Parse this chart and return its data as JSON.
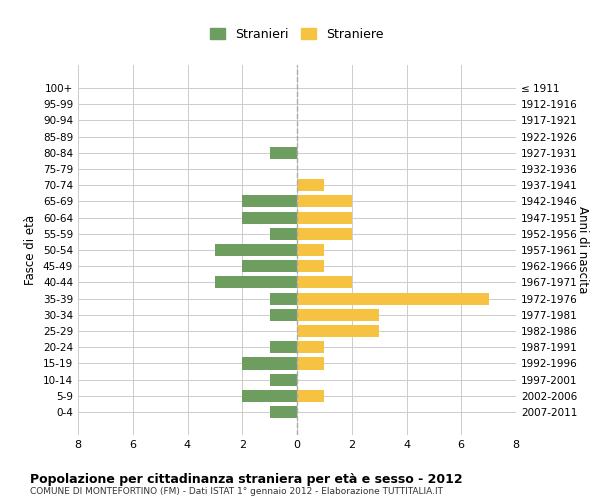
{
  "age_groups": [
    "100+",
    "95-99",
    "90-94",
    "85-89",
    "80-84",
    "75-79",
    "70-74",
    "65-69",
    "60-64",
    "55-59",
    "50-54",
    "45-49",
    "40-44",
    "35-39",
    "30-34",
    "25-29",
    "20-24",
    "15-19",
    "10-14",
    "5-9",
    "0-4"
  ],
  "birth_years": [
    "≤ 1911",
    "1912-1916",
    "1917-1921",
    "1922-1926",
    "1927-1931",
    "1932-1936",
    "1937-1941",
    "1942-1946",
    "1947-1951",
    "1952-1956",
    "1957-1961",
    "1962-1966",
    "1967-1971",
    "1972-1976",
    "1977-1981",
    "1982-1986",
    "1987-1991",
    "1992-1996",
    "1997-2001",
    "2002-2006",
    "2007-2011"
  ],
  "stranieri": [
    0,
    0,
    0,
    0,
    1,
    0,
    0,
    2,
    2,
    1,
    3,
    2,
    3,
    1,
    1,
    0,
    1,
    2,
    1,
    2,
    1
  ],
  "straniere": [
    0,
    0,
    0,
    0,
    0,
    0,
    1,
    2,
    2,
    2,
    1,
    1,
    2,
    7,
    3,
    3,
    1,
    1,
    0,
    1,
    0
  ],
  "stranieri_color": "#6e9e5f",
  "straniere_color": "#f5c242",
  "xlim": 8,
  "ylabel": "Fasce di età",
  "ylabel_right": "Anni di nascita",
  "title": "Popolazione per cittadinanza straniera per età e sesso - 2012",
  "subtitle": "COMUNE DI MONTEFORTINO (FM) - Dati ISTAT 1° gennaio 2012 - Elaborazione TUTTITALIA.IT",
  "legend_stranieri": "Stranieri",
  "legend_straniere": "Straniere",
  "bg_color": "#ffffff",
  "grid_color": "#cccccc",
  "bar_height": 0.75
}
